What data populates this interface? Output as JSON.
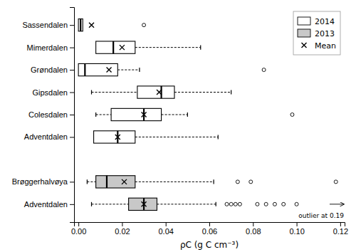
{
  "chart_data": {
    "type": "box",
    "orientation": "horizontal",
    "xlabel": "ρC (g C cm⁻³)",
    "xlim": [
      -0.002,
      0.122
    ],
    "xticks": [
      {
        "value": 0.0,
        "label": "0.00"
      },
      0.02,
      0.04,
      0.06,
      0.08,
      {
        "value": 0.1,
        "label": "0.10"
      },
      0.12
    ],
    "categories": [
      "Sassendalen",
      "Mimerdalen",
      "Grøndalen",
      "Gipsdalen",
      "Colesdalen",
      "Adventdalen",
      "Brøggerhalvøya",
      "Adventdalen"
    ],
    "series": [
      {
        "name": "2014",
        "type": "box",
        "color": "#ffffff",
        "q1": [
          0.0,
          0.008,
          0.0,
          0.027,
          0.015,
          0.007,
          null,
          null
        ],
        "median": [
          0.001,
          0.016,
          0.003,
          0.038,
          0.03,
          0.018,
          null,
          null
        ],
        "q3": [
          0.002,
          0.026,
          0.018,
          0.044,
          0.038,
          0.026,
          null,
          null
        ],
        "whisker_low": [
          0.0,
          0.008,
          0.0,
          0.006,
          0.008,
          0.007,
          null,
          null
        ],
        "whisker_high": [
          0.002,
          0.056,
          0.028,
          0.07,
          0.05,
          0.064,
          null,
          null
        ],
        "outliers": [
          [
            0.03
          ],
          [],
          [
            0.085
          ],
          [],
          [
            0.098
          ],
          [],
          null,
          null
        ]
      },
      {
        "name": "2013",
        "type": "box",
        "color": "#c8c8c8",
        "q1": [
          null,
          null,
          null,
          null,
          null,
          null,
          0.008,
          0.023
        ],
        "median": [
          null,
          null,
          null,
          null,
          null,
          null,
          0.013,
          0.03
        ],
        "q3": [
          null,
          null,
          null,
          null,
          null,
          null,
          0.026,
          0.036
        ],
        "whisker_low": [
          null,
          null,
          null,
          null,
          null,
          null,
          0.004,
          0.006
        ],
        "whisker_high": [
          null,
          null,
          null,
          null,
          null,
          null,
          0.062,
          0.063
        ],
        "outliers": [
          null,
          null,
          null,
          null,
          null,
          null,
          [
            0.073,
            0.079,
            0.118
          ],
          [
            0.068,
            0.07,
            0.072,
            0.074,
            0.082,
            0.086,
            0.09,
            0.094,
            0.1
          ]
        ]
      },
      {
        "name": "Mean",
        "type": "scatter",
        "marker": "x",
        "color": "#000000",
        "values": [
          0.006,
          0.02,
          0.014,
          0.037,
          0.03,
          0.018,
          0.021,
          0.03
        ]
      }
    ],
    "annotations": [
      {
        "text": "outlier at 0.19"
      }
    ],
    "legend": "upper right",
    "grid": false
  }
}
